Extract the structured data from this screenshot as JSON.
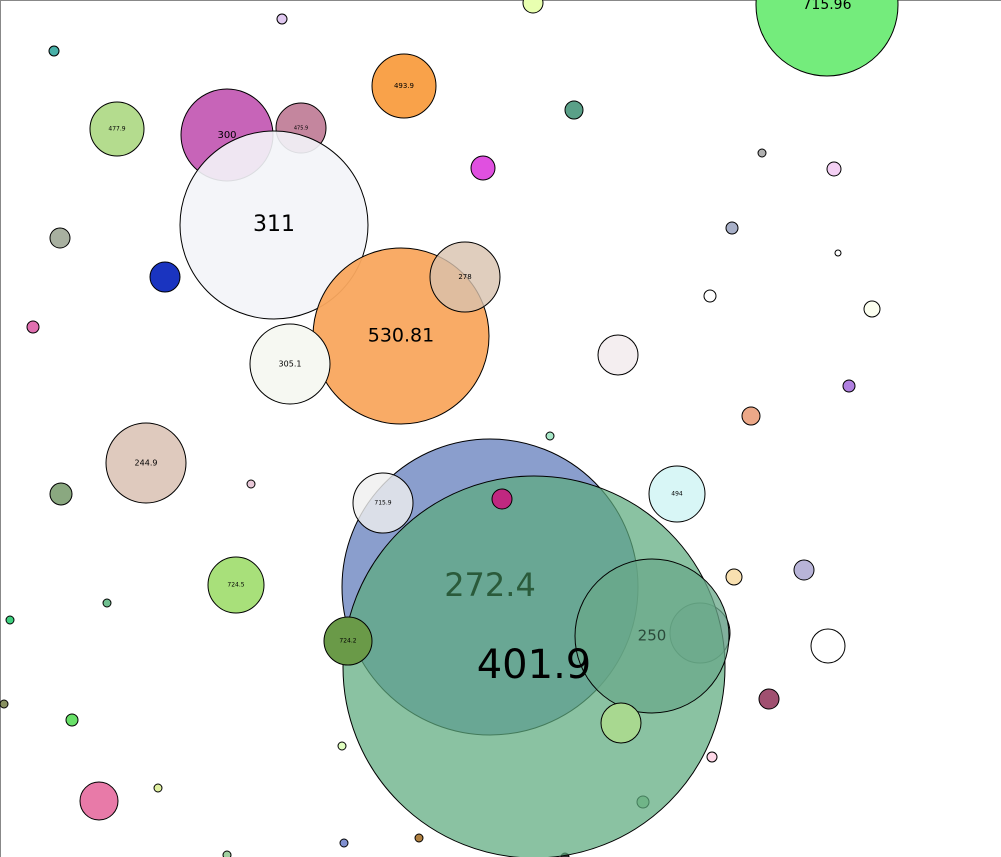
{
  "bubbles": [
    {
      "label": "715.96"
    },
    {
      "label": "493.9"
    },
    {
      "label": "477.9"
    },
    {
      "label": "300"
    },
    {
      "label": "475.9"
    },
    {
      "label": "311"
    },
    {
      "label": "530.81"
    },
    {
      "label": "278"
    },
    {
      "label": "305.1"
    },
    {
      "label": "244.9"
    },
    {
      "label": "272.4"
    },
    {
      "label": "715.9"
    },
    {
      "label": "401.9"
    },
    {
      "label": "250"
    },
    {
      "label": "494"
    },
    {
      "label": "724.5"
    },
    {
      "label": "724.2"
    }
  ]
}
